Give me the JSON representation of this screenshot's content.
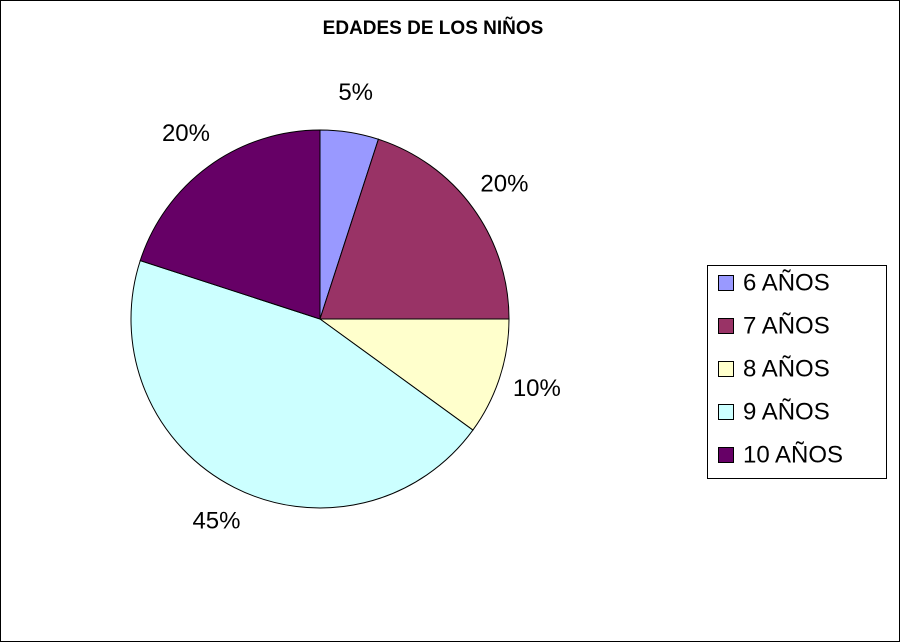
{
  "chart_data": {
    "type": "pie",
    "title": "EDADES DE LOS NIÑOS",
    "categories": [
      "6 AÑOS",
      "7 AÑOS",
      "8 AÑOS",
      "9 AÑOS",
      "10 AÑOS"
    ],
    "values": [
      5,
      20,
      10,
      45,
      20
    ],
    "value_labels": [
      "5%",
      "20%",
      "10%",
      "45%",
      "20%"
    ],
    "colors": [
      "#9999ff",
      "#993366",
      "#ffffcc",
      "#ccffff",
      "#660066"
    ],
    "legend": "right"
  }
}
